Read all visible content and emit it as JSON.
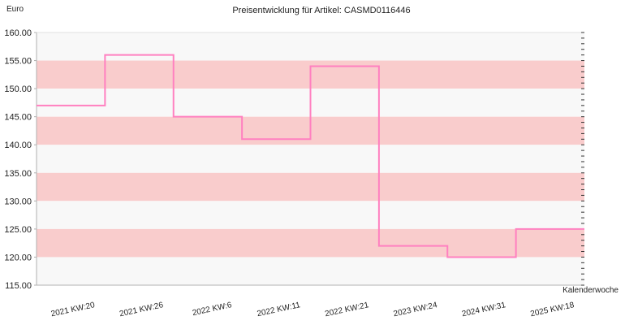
{
  "chart_data": {
    "type": "line",
    "step": true,
    "title": "Preisentwicklung für Artikel: CASMD0116446",
    "ylabel": "Euro",
    "xlabel": "Kalenderwoche",
    "ylim": [
      115,
      160
    ],
    "y_ticks": [
      "160.00",
      "155.00",
      "150.00",
      "145.00",
      "140.00",
      "135.00",
      "130.00",
      "125.00",
      "120.00",
      "115.00"
    ],
    "y_tick_values": [
      160,
      155,
      150,
      145,
      140,
      135,
      130,
      125,
      120,
      115
    ],
    "x_tick_labels": [
      "2021 KW:20",
      "2021 KW:26",
      "2022 KW:6",
      "2022 KW:11",
      "2022 KW:21",
      "2023 KW:24",
      "2024 KW:31",
      "2025 KW:18"
    ],
    "series": [
      {
        "values": [
          147,
          156,
          145,
          141,
          154,
          122,
          120,
          125
        ]
      }
    ],
    "band_colors": [
      "#f8f8f8",
      "#f9cccc"
    ],
    "line_color": "#ff80c0",
    "grid": false
  }
}
